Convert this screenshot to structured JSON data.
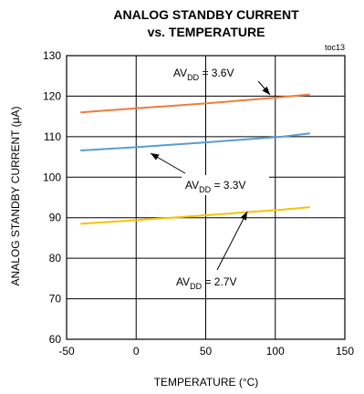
{
  "chart_data": {
    "type": "line",
    "title": "ANALOG STANDBY CURRENT",
    "subtitle": "vs. TEMPERATURE",
    "tag": "toc13",
    "xlabel": "TEMPERATURE (°C)",
    "ylabel": "ANALOG STANDBY CURRENT (μA)",
    "xlim": [
      -50,
      150
    ],
    "ylim": [
      60,
      130
    ],
    "xticks": [
      "-50",
      "0",
      "50",
      "100",
      "150"
    ],
    "yticks": [
      "60",
      "70",
      "80",
      "90",
      "100",
      "110",
      "120",
      "130"
    ],
    "grid": true,
    "series": [
      {
        "name": "AVDD = 3.6V",
        "color": "#ef7d3c",
        "x": [
          -40,
          0,
          25,
          50,
          85,
          105,
          125
        ],
        "y": [
          116,
          117,
          117.6,
          118.2,
          119.2,
          119.8,
          120.4
        ]
      },
      {
        "name": "AVDD = 3.3V",
        "color": "#5b9bd5",
        "x": [
          -40,
          0,
          25,
          50,
          85,
          105,
          125
        ],
        "y": [
          106.6,
          107.4,
          108,
          108.6,
          109.5,
          110,
          110.8
        ]
      },
      {
        "name": "AVDD = 2.7V",
        "color": "#f5c400",
        "x": [
          -40,
          0,
          25,
          50,
          85,
          105,
          125
        ],
        "y": [
          88.5,
          89.4,
          90,
          90.6,
          91.5,
          92,
          92.6
        ]
      }
    ],
    "annotations": [
      {
        "prefix": "AV",
        "sub": "DD",
        "suffix": " = 3.6V"
      },
      {
        "prefix": "AV",
        "sub": "DD",
        "suffix": " = 3.3V"
      },
      {
        "prefix": "AV",
        "sub": "DD",
        "suffix": " = 2.7V"
      }
    ]
  }
}
